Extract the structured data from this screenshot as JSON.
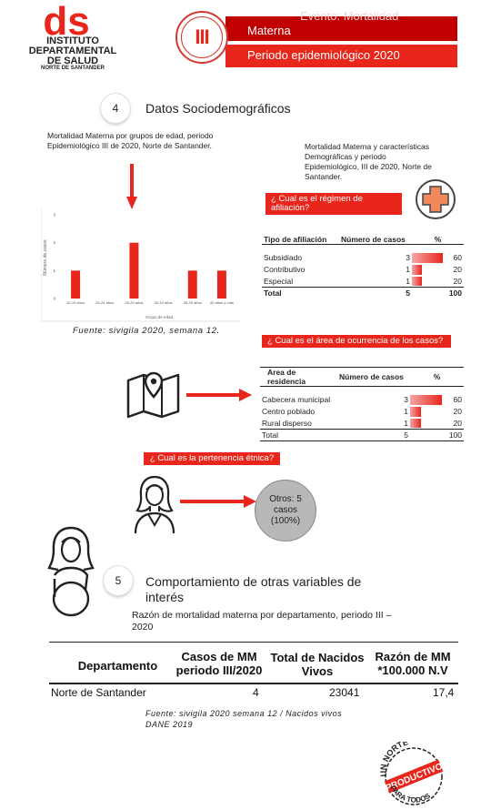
{
  "header": {
    "logo_top": "ds",
    "logo_lines": [
      "INSTITUTO",
      "DEPARTAMENTAL",
      "DE SALUD"
    ],
    "logo_sub": "NORTE DE SANTANDER",
    "roman": "III",
    "evento": "Evento:  Mortalidad",
    "materna": "Materna",
    "periodo": "Periodo epidemiológico 2020"
  },
  "section4": {
    "number": "4",
    "title": "Datos Sociodemográficos",
    "left_caption": "Mortalidad Materna por grupos de edad, periodo Epidemiológico III de 2020, Norte de Santander.",
    "right_caption": "Mortalidad Materna y características Demográficas  y periodo Epidemiológico, III de 2020, Norte de Santander.",
    "fuente": "Fuente: sivigila 2020, semana 12."
  },
  "chart_data": {
    "type": "bar",
    "categories": [
      "10-19 años",
      "20-24 años",
      "25-29 años",
      "30-34 años",
      "35-39 años",
      "40 años y más"
    ],
    "values": [
      1,
      0,
      2,
      0,
      1,
      1
    ],
    "ylabel": "Número de casos",
    "xlabel": "Grupo de edad",
    "yticks": [
      "0",
      "1",
      "2",
      "3"
    ],
    "ylim": [
      0,
      3
    ],
    "color": "#e8261c"
  },
  "q_regimen": {
    "label": "¿ Cual es el régimen de afiliación?",
    "headers": [
      "Tipo de afiliación",
      "Número de casos",
      "%"
    ],
    "rows": [
      {
        "name": "Subsidiado",
        "casos": "3",
        "pct": "60",
        "frac": 0.6
      },
      {
        "name": "Contributivo",
        "casos": "1",
        "pct": "20",
        "frac": 0.2
      },
      {
        "name": "Especial",
        "casos": "1",
        "pct": "20",
        "frac": 0.2
      }
    ],
    "total": {
      "name": "Total",
      "casos": "5",
      "pct": "100"
    }
  },
  "q_area": {
    "label": "¿ Cual es el área de ocurrencia de los casos?",
    "headers": [
      "Area de residencia",
      "Número de casos",
      "%"
    ],
    "rows": [
      {
        "name": "Cabecera municipal",
        "casos": "3",
        "pct": "60",
        "frac": 0.6
      },
      {
        "name": "Centro poblado",
        "casos": "1",
        "pct": "20",
        "frac": 0.2
      },
      {
        "name": "Rural disperso",
        "casos": "1",
        "pct": "20",
        "frac": 0.2
      }
    ],
    "total": {
      "name": "Total",
      "casos": "5",
      "pct": "100"
    }
  },
  "q_etnia": {
    "label": "¿ Cual es la pertenencia étnica?",
    "circle_lines": [
      "Otros: 5",
      "casos",
      "(100%)"
    ]
  },
  "section5": {
    "number": "5",
    "title": "Comportamiento de otras variables de interés",
    "caption": "Razón de mortalidad materna por departamento,  periodo III – 2020",
    "table": {
      "h1": "Departamento",
      "h2": "Casos de MM periodo III/2020",
      "h3": "Total de Nacidos Vivos",
      "h4": "Razón de MM *100.000 N.V",
      "departamento": "Norte de Santander",
      "casos": "4",
      "nacidos": "23041",
      "razon": "17,4"
    },
    "fuente_lines": [
      "Fuente: sivigila 2020 semana 12 / Nacidos vivos",
      "DANE 2019"
    ]
  },
  "stamp": {
    "top": "UN NORTE",
    "mid": "PRODUCTIVO",
    "bot": "PARA TODOS"
  },
  "colors": {
    "brand_red": "#e8261c",
    "dark_red": "#c00000",
    "grey": "#b8b8b8"
  }
}
